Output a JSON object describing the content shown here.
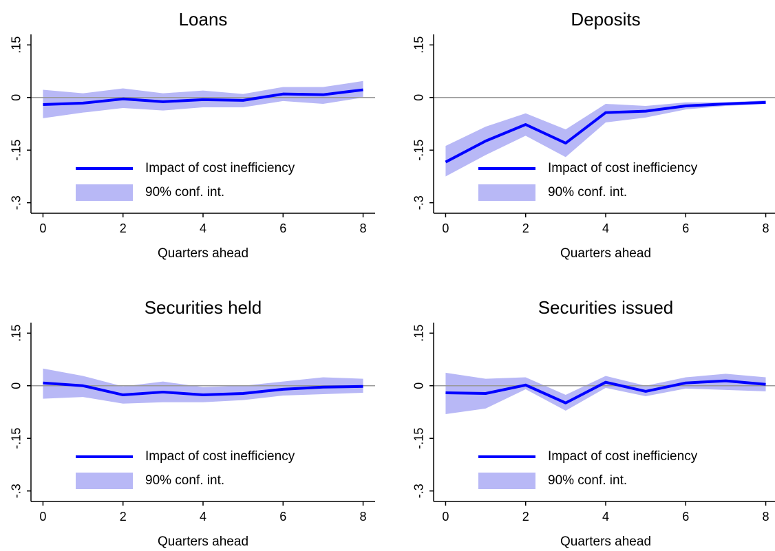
{
  "chart_data": [
    {
      "type": "line",
      "title": "Loans",
      "x_label": "Quarters ahead",
      "x": [
        0,
        1,
        2,
        3,
        4,
        5,
        6,
        7,
        8
      ],
      "xlim": [
        -0.3,
        8.3
      ],
      "xticks": [
        0,
        2,
        4,
        6,
        8
      ],
      "ylim": [
        -0.33,
        0.18
      ],
      "yticks": [
        {
          "value": -0.3,
          "label": "-.3"
        },
        {
          "value": -0.15,
          "label": "-.15"
        },
        0,
        {
          "value": 0.15,
          "label": ".15"
        }
      ],
      "yline": 0,
      "series": [
        {
          "name": "Impact of cost inefficiency",
          "color": "#0000ff",
          "values": [
            -0.02,
            -0.016,
            -0.004,
            -0.012,
            -0.006,
            -0.008,
            0.01,
            0.008,
            0.022
          ]
        },
        {
          "name": "90% conf. int.",
          "color": "#b8b8f6",
          "lower": [
            -0.059,
            -0.043,
            -0.03,
            -0.037,
            -0.028,
            -0.028,
            -0.01,
            -0.018,
            0
          ],
          "upper": [
            0.022,
            0.012,
            0.026,
            0.012,
            0.02,
            0.01,
            0.03,
            0.03,
            0.047
          ]
        }
      ]
    },
    {
      "type": "line",
      "title": "Deposits",
      "x_label": "Quarters ahead",
      "x": [
        0,
        1,
        2,
        3,
        4,
        5,
        6,
        7,
        8
      ],
      "xlim": [
        -0.3,
        8.3
      ],
      "xticks": [
        0,
        2,
        4,
        6,
        8
      ],
      "ylim": [
        -0.33,
        0.18
      ],
      "yticks": [
        {
          "value": -0.3,
          "label": "-.3"
        },
        {
          "value": -0.15,
          "label": "-.15"
        },
        0,
        {
          "value": 0.15,
          "label": ".15"
        }
      ],
      "yline": 0,
      "series": [
        {
          "name": "Impact of cost inefficiency",
          "color": "#0000ff",
          "values": [
            -0.184,
            -0.124,
            -0.077,
            -0.13,
            -0.043,
            -0.039,
            -0.024,
            -0.018,
            -0.014
          ]
        },
        {
          "name": "90% conf. int.",
          "color": "#b8b8f6",
          "lower": [
            -0.225,
            -0.164,
            -0.109,
            -0.17,
            -0.071,
            -0.057,
            -0.034,
            -0.024,
            -0.018
          ],
          "upper": [
            -0.138,
            -0.083,
            -0.045,
            -0.091,
            -0.018,
            -0.024,
            -0.014,
            -0.014,
            -0.008
          ]
        }
      ]
    },
    {
      "type": "line",
      "title": "Securities held",
      "x_label": "Quarters ahead",
      "x": [
        0,
        1,
        2,
        3,
        4,
        5,
        6,
        7,
        8
      ],
      "xlim": [
        -0.3,
        8.3
      ],
      "xticks": [
        0,
        2,
        4,
        6,
        8
      ],
      "ylim": [
        -0.33,
        0.18
      ],
      "yticks": [
        {
          "value": -0.3,
          "label": "-.3"
        },
        {
          "value": -0.15,
          "label": "-.15"
        },
        0,
        {
          "value": 0.15,
          "label": ".15"
        }
      ],
      "yline": 0,
      "series": [
        {
          "name": "Impact of cost inefficiency",
          "color": "#0000ff",
          "values": [
            0.008,
            0,
            -0.026,
            -0.018,
            -0.026,
            -0.022,
            -0.01,
            -0.004,
            -0.002
          ]
        },
        {
          "name": "90% conf. int.",
          "color": "#b8b8f6",
          "lower": [
            -0.037,
            -0.032,
            -0.051,
            -0.047,
            -0.047,
            -0.041,
            -0.028,
            -0.024,
            -0.02
          ],
          "upper": [
            0.049,
            0.028,
            -0.002,
            0.012,
            -0.004,
            0,
            0.012,
            0.024,
            0.02
          ]
        }
      ]
    },
    {
      "type": "line",
      "title": "Securities issued",
      "x_label": "Quarters ahead",
      "x": [
        0,
        1,
        2,
        3,
        4,
        5,
        6,
        7,
        8
      ],
      "xlim": [
        -0.3,
        8.3
      ],
      "xticks": [
        0,
        2,
        4,
        6,
        8
      ],
      "ylim": [
        -0.33,
        0.18
      ],
      "yticks": [
        {
          "value": -0.3,
          "label": "-.3"
        },
        {
          "value": -0.15,
          "label": "-.15"
        },
        0,
        {
          "value": 0.15,
          "label": ".15"
        }
      ],
      "yline": 0,
      "series": [
        {
          "name": "Impact of cost inefficiency",
          "color": "#0000ff",
          "values": [
            -0.02,
            -0.022,
            0.002,
            -0.049,
            0.01,
            -0.016,
            0.008,
            0.014,
            0.004
          ]
        },
        {
          "name": "90% conf. int.",
          "color": "#b8b8f6",
          "lower": [
            -0.081,
            -0.065,
            -0.01,
            -0.071,
            -0.006,
            -0.03,
            -0.008,
            -0.012,
            -0.016
          ],
          "upper": [
            0.037,
            0.02,
            0.024,
            -0.026,
            0.028,
            0,
            0.024,
            0.034,
            0.024
          ]
        }
      ]
    }
  ]
}
